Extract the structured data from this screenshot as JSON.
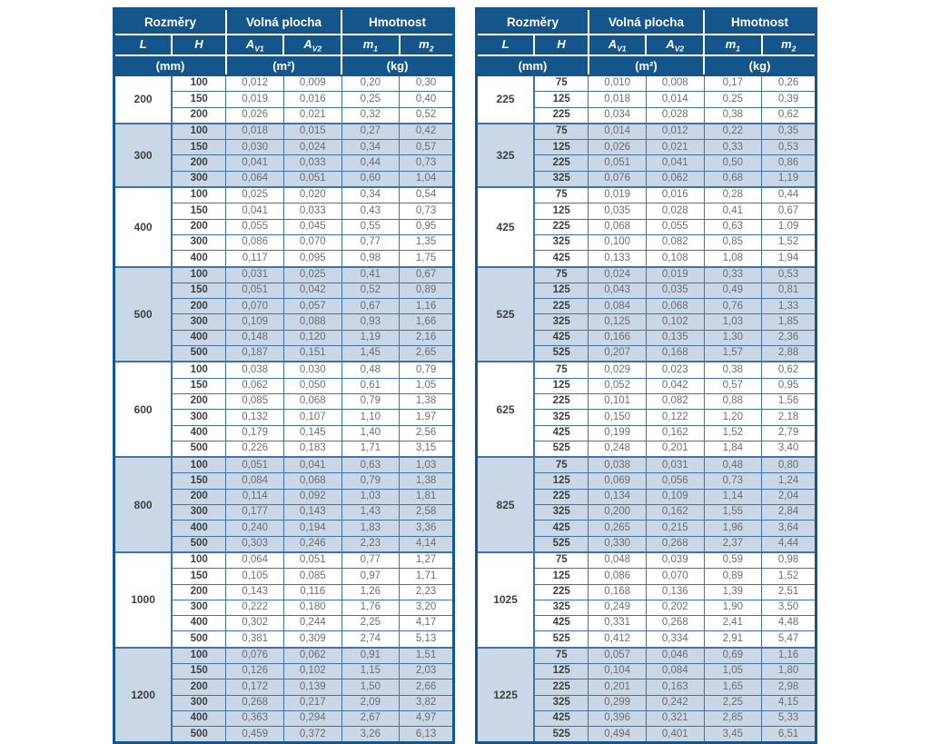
{
  "header": {
    "group_labels": [
      "Rozměry",
      "Volná plocha",
      "Hmotnost"
    ],
    "columns": [
      {
        "base": "L",
        "sub": ""
      },
      {
        "base": "H",
        "sub": ""
      },
      {
        "base": "A",
        "sub": "V1"
      },
      {
        "base": "A",
        "sub": "V2"
      },
      {
        "base": "m",
        "sub": "1"
      },
      {
        "base": "m",
        "sub": "2"
      }
    ],
    "units": [
      "(mm)",
      "(m²)",
      "(kg)"
    ]
  },
  "colors": {
    "header_bg": "#14568C",
    "cell_border": "#4273a4",
    "shaded_row_bg": "#c9d7e6",
    "dim_text": "#3f4041",
    "value_text": "#6d6e71"
  },
  "tables": [
    {
      "name": "left-table",
      "groups": [
        {
          "L": "200",
          "rows": [
            [
              "100",
              "0,012",
              "0,009",
              "0,20",
              "0,30"
            ],
            [
              "150",
              "0,019",
              "0,016",
              "0,25",
              "0,40"
            ],
            [
              "200",
              "0,026",
              "0,021",
              "0,32",
              "0,52"
            ]
          ]
        },
        {
          "L": "300",
          "rows": [
            [
              "100",
              "0,018",
              "0,015",
              "0,27",
              "0,42"
            ],
            [
              "150",
              "0,030",
              "0,024",
              "0,34",
              "0,57"
            ],
            [
              "200",
              "0,041",
              "0,033",
              "0,44",
              "0,73"
            ],
            [
              "300",
              "0,064",
              "0,051",
              "0,60",
              "1,04"
            ]
          ]
        },
        {
          "L": "400",
          "rows": [
            [
              "100",
              "0,025",
              "0,020",
              "0,34",
              "0,54"
            ],
            [
              "150",
              "0,041",
              "0,033",
              "0,43",
              "0,73"
            ],
            [
              "200",
              "0,055",
              "0,045",
              "0,55",
              "0,95"
            ],
            [
              "300",
              "0,086",
              "0,070",
              "0,77",
              "1,35"
            ],
            [
              "400",
              "0,117",
              "0,095",
              "0,98",
              "1,75"
            ]
          ]
        },
        {
          "L": "500",
          "rows": [
            [
              "100",
              "0,031",
              "0,025",
              "0,41",
              "0,67"
            ],
            [
              "150",
              "0,051",
              "0,042",
              "0,52",
              "0,89"
            ],
            [
              "200",
              "0,070",
              "0,057",
              "0,67",
              "1,16"
            ],
            [
              "300",
              "0,109",
              "0,088",
              "0,93",
              "1,66"
            ],
            [
              "400",
              "0,148",
              "0,120",
              "1,19",
              "2,16"
            ],
            [
              "500",
              "0,187",
              "0,151",
              "1,45",
              "2,65"
            ]
          ]
        },
        {
          "L": "600",
          "rows": [
            [
              "100",
              "0,038",
              "0,030",
              "0,48",
              "0,79"
            ],
            [
              "150",
              "0,062",
              "0,050",
              "0,61",
              "1,05"
            ],
            [
              "200",
              "0,085",
              "0,068",
              "0,79",
              "1,38"
            ],
            [
              "300",
              "0,132",
              "0,107",
              "1,10",
              "1,97"
            ],
            [
              "400",
              "0,179",
              "0,145",
              "1,40",
              "2,56"
            ],
            [
              "500",
              "0,226",
              "0,183",
              "1,71",
              "3,15"
            ]
          ]
        },
        {
          "L": "800",
          "rows": [
            [
              "100",
              "0,051",
              "0,041",
              "0,63",
              "1,03"
            ],
            [
              "150",
              "0,084",
              "0,068",
              "0,79",
              "1,38"
            ],
            [
              "200",
              "0,114",
              "0,092",
              "1,03",
              "1,81"
            ],
            [
              "300",
              "0,177",
              "0,143",
              "1,43",
              "2,58"
            ],
            [
              "400",
              "0,240",
              "0,194",
              "1,83",
              "3,36"
            ],
            [
              "500",
              "0,303",
              "0,246",
              "2,23",
              "4,14"
            ]
          ]
        },
        {
          "L": "1000",
          "rows": [
            [
              "100",
              "0,064",
              "0,051",
              "0,77",
              "1,27"
            ],
            [
              "150",
              "0,105",
              "0,085",
              "0,97",
              "1,71"
            ],
            [
              "200",
              "0,143",
              "0,116",
              "1,26",
              "2,23"
            ],
            [
              "300",
              "0,222",
              "0,180",
              "1,76",
              "3,20"
            ],
            [
              "400",
              "0,302",
              "0,244",
              "2,25",
              "4,17"
            ],
            [
              "500",
              "0,381",
              "0,309",
              "2,74",
              "5,13"
            ]
          ]
        },
        {
          "L": "1200",
          "rows": [
            [
              "100",
              "0,076",
              "0,062",
              "0,91",
              "1,51"
            ],
            [
              "150",
              "0,126",
              "0,102",
              "1,15",
              "2,03"
            ],
            [
              "200",
              "0,172",
              "0,139",
              "1,50",
              "2,66"
            ],
            [
              "300",
              "0,268",
              "0,217",
              "2,09",
              "3,82"
            ],
            [
              "400",
              "0,363",
              "0,294",
              "2,67",
              "4,97"
            ],
            [
              "500",
              "0,459",
              "0,372",
              "3,26",
              "6,13"
            ]
          ]
        }
      ]
    },
    {
      "name": "right-table",
      "groups": [
        {
          "L": "225",
          "rows": [
            [
              "75",
              "0,010",
              "0,008",
              "0,17",
              "0,26"
            ],
            [
              "125",
              "0,018",
              "0,014",
              "0,25",
              "0,39"
            ],
            [
              "225",
              "0,034",
              "0,028",
              "0,38",
              "0,62"
            ]
          ]
        },
        {
          "L": "325",
          "rows": [
            [
              "75",
              "0,014",
              "0,012",
              "0,22",
              "0,35"
            ],
            [
              "125",
              "0,026",
              "0,021",
              "0,33",
              "0,53"
            ],
            [
              "225",
              "0,051",
              "0,041",
              "0,50",
              "0,86"
            ],
            [
              "325",
              "0,076",
              "0,062",
              "0,68",
              "1,19"
            ]
          ]
        },
        {
          "L": "425",
          "rows": [
            [
              "75",
              "0,019",
              "0,016",
              "0,28",
              "0,44"
            ],
            [
              "125",
              "0,035",
              "0,028",
              "0,41",
              "0,67"
            ],
            [
              "225",
              "0,068",
              "0,055",
              "0,63",
              "1,09"
            ],
            [
              "325",
              "0,100",
              "0,082",
              "0,85",
              "1,52"
            ],
            [
              "425",
              "0,133",
              "0,108",
              "1,08",
              "1,94"
            ]
          ]
        },
        {
          "L": "525",
          "rows": [
            [
              "75",
              "0,024",
              "0,019",
              "0,33",
              "0,53"
            ],
            [
              "125",
              "0,043",
              "0,035",
              "0,49",
              "0,81"
            ],
            [
              "225",
              "0,084",
              "0,068",
              "0,76",
              "1,33"
            ],
            [
              "325",
              "0,125",
              "0,102",
              "1,03",
              "1,85"
            ],
            [
              "425",
              "0,166",
              "0,135",
              "1,30",
              "2,36"
            ],
            [
              "525",
              "0,207",
              "0,168",
              "1,57",
              "2,88"
            ]
          ]
        },
        {
          "L": "625",
          "rows": [
            [
              "75",
              "0,029",
              "0,023",
              "0,38",
              "0,62"
            ],
            [
              "125",
              "0,052",
              "0,042",
              "0,57",
              "0,95"
            ],
            [
              "225",
              "0,101",
              "0,082",
              "0,88",
              "1,56"
            ],
            [
              "325",
              "0,150",
              "0,122",
              "1,20",
              "2,18"
            ],
            [
              "425",
              "0,199",
              "0,162",
              "1,52",
              "2,79"
            ],
            [
              "525",
              "0,248",
              "0,201",
              "1,84",
              "3,40"
            ]
          ]
        },
        {
          "L": "825",
          "rows": [
            [
              "75",
              "0,038",
              "0,031",
              "0,48",
              "0,80"
            ],
            [
              "125",
              "0,069",
              "0,056",
              "0,73",
              "1,24"
            ],
            [
              "225",
              "0,134",
              "0,109",
              "1,14",
              "2,04"
            ],
            [
              "325",
              "0,200",
              "0,162",
              "1,55",
              "2,84"
            ],
            [
              "425",
              "0,265",
              "0,215",
              "1,96",
              "3,64"
            ],
            [
              "525",
              "0,330",
              "0,268",
              "2,37",
              "4,44"
            ]
          ]
        },
        {
          "L": "1025",
          "rows": [
            [
              "75",
              "0,048",
              "0,039",
              "0,59",
              "0,98"
            ],
            [
              "125",
              "0,086",
              "0,070",
              "0,89",
              "1,52"
            ],
            [
              "225",
              "0,168",
              "0,136",
              "1,39",
              "2,51"
            ],
            [
              "325",
              "0,249",
              "0,202",
              "1,90",
              "3,50"
            ],
            [
              "425",
              "0,331",
              "0,268",
              "2,41",
              "4,48"
            ],
            [
              "525",
              "0,412",
              "0,334",
              "2,91",
              "5,47"
            ]
          ]
        },
        {
          "L": "1225",
          "rows": [
            [
              "75",
              "0,057",
              "0,046",
              "0,69",
              "1,16"
            ],
            [
              "125",
              "0,104",
              "0,084",
              "1,05",
              "1,80"
            ],
            [
              "225",
              "0,201",
              "0,163",
              "1,65",
              "2,98"
            ],
            [
              "325",
              "0,299",
              "0,242",
              "2,25",
              "4,15"
            ],
            [
              "425",
              "0,396",
              "0,321",
              "2,85",
              "5,33"
            ],
            [
              "525",
              "0,494",
              "0,401",
              "3,45",
              "6,51"
            ]
          ]
        }
      ]
    }
  ]
}
